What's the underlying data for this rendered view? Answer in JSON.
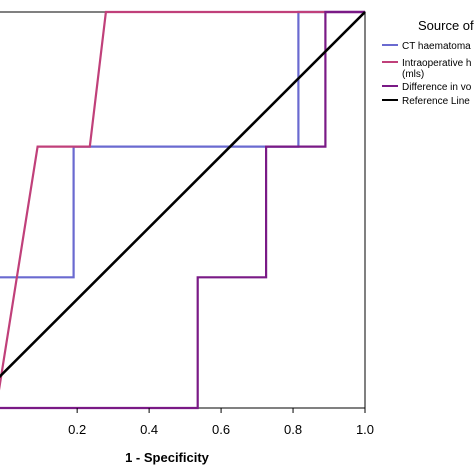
{
  "chart_data": {
    "type": "line",
    "title": "",
    "xlabel": "1 - Specificity",
    "ylabel": "",
    "xlim": [
      -0.02,
      1.0
    ],
    "ylim": [
      0.0,
      1.0
    ],
    "x_ticks": [
      "0.2",
      "0.4",
      "0.6",
      "0.8",
      "1.0"
    ],
    "x_tick_values": [
      0.2,
      0.4,
      0.6,
      0.8,
      1.0
    ],
    "grid": false,
    "legend": {
      "title": "Source of",
      "placement": "right",
      "entries": [
        {
          "label_lines": [
            "CT haematoma"
          ],
          "color": "#6a6ad0"
        },
        {
          "label_lines": [
            "Intraoperative h",
            "(mls)"
          ],
          "color": "#c0407a"
        },
        {
          "label_lines": [
            "Difference in vo"
          ],
          "color": "#7a1a86"
        },
        {
          "label_lines": [
            "Reference Line"
          ],
          "color": "#000000"
        }
      ]
    },
    "series": [
      {
        "color": "#6a6ad0",
        "points": [
          [
            -0.02,
            0.33
          ],
          [
            0.19,
            0.33
          ],
          [
            0.19,
            0.66
          ],
          [
            0.815,
            0.66
          ],
          [
            0.815,
            1.0
          ],
          [
            1.0,
            1.0
          ]
        ]
      },
      {
        "color": "#c0407a",
        "points": [
          [
            -0.02,
            0.03
          ],
          [
            0.09,
            0.66
          ],
          [
            0.235,
            0.66
          ],
          [
            0.28,
            1.0
          ],
          [
            1.0,
            1.0
          ]
        ]
      },
      {
        "color": "#7a1a86",
        "points": [
          [
            -0.02,
            0.0
          ],
          [
            0.535,
            0.0
          ],
          [
            0.535,
            0.33
          ],
          [
            0.725,
            0.33
          ],
          [
            0.725,
            0.66
          ],
          [
            0.89,
            0.66
          ],
          [
            0.89,
            1.0
          ],
          [
            1.0,
            1.0
          ]
        ]
      },
      {
        "color": "#000000",
        "points": [
          [
            -0.02,
            0.075
          ],
          [
            1.0,
            1.0
          ]
        ]
      }
    ]
  }
}
